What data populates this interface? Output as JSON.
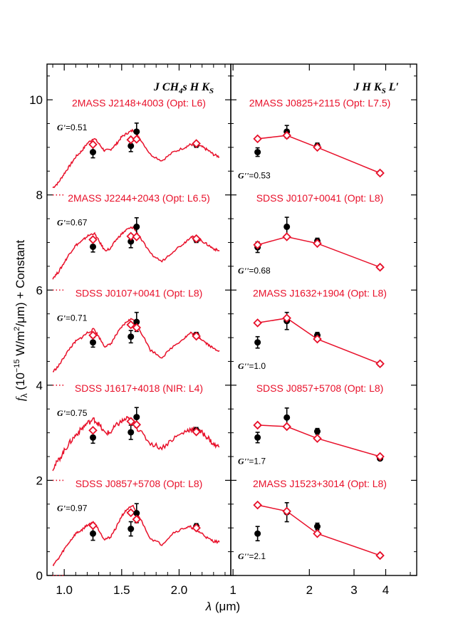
{
  "chart_data": {
    "type": "line",
    "ylabel": "fλ (10⁻¹⁵ W/m²/μm) + Constant",
    "ylabel_parts": {
      "sym": "f",
      "sub": "λ",
      "pre": " (10",
      "exp": "−15",
      "mid": " W/m",
      "exp2": "2",
      "post": "/μm) + Constant"
    },
    "xlabel": "λ (μm)",
    "xlabel_parts": {
      "sym": "λ",
      "rest": " (μm)"
    },
    "colors": {
      "model": "#e8102a",
      "data": "#000000"
    },
    "ylim": [
      0,
      10.75
    ],
    "yticks": [
      "0",
      "2",
      "4",
      "6",
      "8",
      "10"
    ],
    "left_panel": {
      "filters_label": "J CH4s H KS",
      "filters_parts": {
        "a": "J CH",
        "b": "4",
        "c": "s H K",
        "d": "S"
      },
      "xlim": [
        0.85,
        2.45
      ],
      "xscale": "linear",
      "xticks": [
        "1.0",
        "1.5",
        "2.0"
      ],
      "filter_wavelengths": [
        1.25,
        1.58,
        1.63,
        2.15
      ],
      "stats": [
        {
          "sym": "G'",
          "val": "=0.51"
        },
        {
          "sym": "G'",
          "val": "=0.67"
        },
        {
          "sym": "G'",
          "val": "=0.71"
        },
        {
          "sym": "G'",
          "val": "=0.75"
        },
        {
          "sym": "G'",
          "val": "=0.97"
        }
      ]
    },
    "right_panel": {
      "filters_label": "J H KS L'",
      "filters_parts": {
        "a": "J H K",
        "b": "S",
        "c": " L′"
      },
      "xlim": [
        0.98,
        5.3
      ],
      "xscale": "log",
      "xticks": [
        "1",
        "2",
        "3",
        "4"
      ],
      "filter_wavelengths": [
        1.25,
        1.63,
        2.15,
        3.8
      ],
      "stats": [
        {
          "sym": "G''",
          "val": "=0.53"
        },
        {
          "sym": "G''",
          "val": "=0.68"
        },
        {
          "sym": "G''",
          "val": "=1.0"
        },
        {
          "sym": "G''",
          "val": "=1.7"
        },
        {
          "sym": "G''",
          "val": "=2.1"
        }
      ]
    },
    "rows": [
      {
        "offset": 8,
        "left_name": "2MASS J2148+4003 (Opt: L6)",
        "left_model": [
          0.15,
          0.26,
          0.45,
          0.62,
          0.8,
          0.92,
          1.08,
          1.2,
          1.08,
          0.93,
          0.95,
          1.06,
          1.22,
          1.3,
          1.36,
          1.22,
          0.85,
          0.72,
          0.9,
          1.0,
          1.06,
          1.05,
          1.01,
          0.94,
          0.85,
          0.8
        ],
        "left_model_mag": [
          1.06,
          1.16,
          1.17,
          1.08
        ],
        "left_obs": [
          [
            0.9,
            0.12
          ],
          [
            1.03,
            0.12
          ],
          [
            1.33,
            0.18
          ],
          [
            1.06,
            0.06
          ]
        ],
        "right_name": "2MASS J0825+2115 (Opt: L7.5)",
        "right_model_mag": [
          1.18,
          1.25,
          1.0,
          0.46
        ],
        "right_obs": [
          [
            0.9,
            0.09
          ],
          [
            1.33,
            0.13
          ],
          [
            1.03,
            0.06
          ],
          [
            0.46,
            0.04
          ]
        ]
      },
      {
        "offset": 6,
        "left_name": "2MASS J2244+2043 (Opt: L6.5)",
        "left_model": [
          0.25,
          0.38,
          0.58,
          0.78,
          0.94,
          1.02,
          1.13,
          1.2,
          1.04,
          0.84,
          0.86,
          1.05,
          1.18,
          1.28,
          1.32,
          1.15,
          0.76,
          0.6,
          0.82,
          1.0,
          1.12,
          1.1,
          1.03,
          0.95,
          0.87,
          0.82
        ],
        "left_model_mag": [
          1.06,
          1.13,
          1.12,
          1.08
        ],
        "left_obs": [
          [
            0.91,
            0.11
          ],
          [
            1.02,
            0.13
          ],
          [
            1.33,
            0.19
          ],
          [
            1.06,
            0.06
          ]
        ],
        "right_name": "SDSS J0107+0041 (Opt: L8)",
        "right_model_mag": [
          0.95,
          1.12,
          0.98,
          0.48
        ],
        "right_obs": [
          [
            0.9,
            0.11
          ],
          [
            1.33,
            0.2
          ],
          [
            1.03,
            0.06
          ],
          [
            0.48,
            0.03
          ]
        ]
      },
      {
        "offset": 4,
        "left_name": "SDSS J0107+0041 (Opt: L8)",
        "left_model": [
          0.28,
          0.4,
          0.6,
          0.78,
          0.92,
          1.0,
          1.1,
          1.18,
          1.02,
          0.82,
          0.85,
          1.05,
          1.22,
          1.35,
          1.4,
          1.2,
          0.74,
          0.58,
          0.82,
          1.0,
          1.1,
          1.05,
          0.96,
          0.86,
          0.77,
          0.73
        ],
        "left_model_mag": [
          1.05,
          1.27,
          1.21,
          1.03
        ],
        "left_obs": [
          [
            0.9,
            0.1
          ],
          [
            1.02,
            0.13
          ],
          [
            1.33,
            0.2
          ],
          [
            1.05,
            0.06
          ]
        ],
        "right_name": "2MASS J1632+1904 (Opt: L8)",
        "right_model_mag": [
          1.31,
          1.41,
          0.97,
          0.45
        ],
        "right_obs": [
          [
            0.9,
            0.12
          ],
          [
            1.35,
            0.18
          ],
          [
            1.05,
            0.06
          ],
          [
            0.45,
            0.03
          ]
        ]
      },
      {
        "offset": 2,
        "left_name": "SDSS J1617+4018 (NIR: L4)",
        "left_model": [
          0.25,
          0.42,
          0.62,
          0.8,
          0.95,
          1.08,
          1.2,
          1.28,
          1.18,
          1.0,
          1.0,
          1.15,
          1.24,
          1.3,
          1.22,
          1.05,
          0.78,
          0.68,
          0.88,
          1.02,
          1.08,
          1.06,
          1.0,
          0.9,
          0.75,
          0.7
        ],
        "left_model_mag": [
          1.05,
          1.24,
          1.17,
          1.02
        ],
        "left_obs": [
          [
            0.9,
            0.12
          ],
          [
            1.01,
            0.15
          ],
          [
            1.33,
            0.2
          ],
          [
            1.05,
            0.06
          ]
        ],
        "right_name": "SDSS J0857+5708 (Opt: L8)",
        "right_model_mag": [
          1.16,
          1.13,
          0.88,
          0.5
        ],
        "right_obs": [
          [
            0.9,
            0.11
          ],
          [
            1.32,
            0.2
          ],
          [
            1.03,
            0.06
          ],
          [
            0.46,
            0.04
          ]
        ]
      },
      {
        "offset": 0,
        "left_name": "SDSS J0857+5708 (Opt: L8)",
        "left_model": [
          0.22,
          0.35,
          0.55,
          0.72,
          0.88,
          0.95,
          1.06,
          1.12,
          0.96,
          0.76,
          0.8,
          1.0,
          1.25,
          1.4,
          1.45,
          1.25,
          0.78,
          0.65,
          0.9,
          1.0,
          1.02,
          0.95,
          0.88,
          0.78,
          0.72,
          0.7
        ],
        "left_model_mag": [
          1.05,
          1.32,
          1.18,
          1.0
        ],
        "left_obs": [
          [
            0.88,
            0.14
          ],
          [
            0.98,
            0.15
          ],
          [
            1.31,
            0.2
          ],
          [
            1.03,
            0.06
          ]
        ],
        "right_name": "2MASS J1523+3014 (Opt: L8)",
        "right_model_mag": [
          1.48,
          1.35,
          0.88,
          0.42
        ],
        "right_obs": [
          [
            0.88,
            0.15
          ],
          [
            1.33,
            0.2
          ],
          [
            1.03,
            0.07
          ],
          [
            0.42,
            0.03
          ]
        ]
      }
    ],
    "model_wavelengths": [
      0.9,
      0.95,
      1.0,
      1.05,
      1.1,
      1.15,
      1.2,
      1.26,
      1.3,
      1.35,
      1.4,
      1.45,
      1.5,
      1.55,
      1.6,
      1.65,
      1.75,
      1.85,
      1.95,
      2.05,
      2.1,
      2.15,
      2.2,
      2.25,
      2.3,
      2.35
    ]
  }
}
